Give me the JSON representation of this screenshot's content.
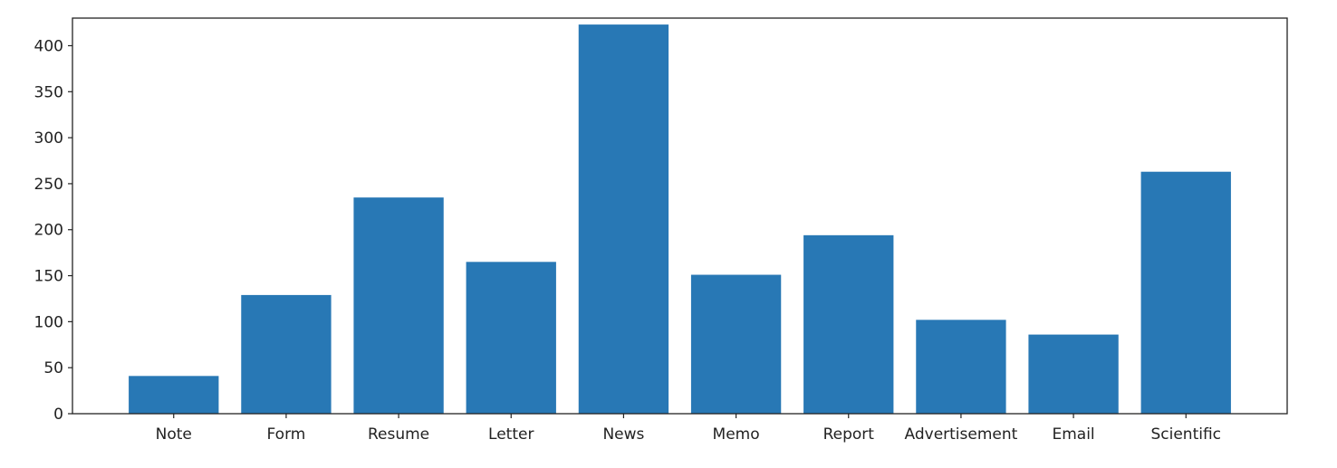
{
  "chart_data": {
    "type": "bar",
    "title": "",
    "xlabel": "",
    "ylabel": "",
    "categories": [
      "Note",
      "Form",
      "Resume",
      "Letter",
      "News",
      "Memo",
      "Report",
      "Advertisement",
      "Email",
      "Scientific"
    ],
    "values": [
      41,
      129,
      235,
      165,
      423,
      151,
      194,
      102,
      86,
      263
    ],
    "ylim": [
      0,
      430
    ],
    "yticks": [
      0,
      50,
      100,
      150,
      200,
      250,
      300,
      350,
      400
    ],
    "ytick_labels": [
      "0",
      "50",
      "100",
      "150",
      "200",
      "250",
      "300",
      "350",
      "400"
    ],
    "bar_color": "#2878b5",
    "grid": false,
    "legend": "none"
  }
}
